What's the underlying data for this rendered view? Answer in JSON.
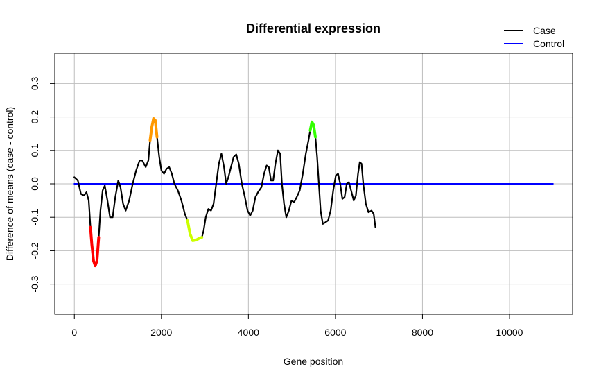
{
  "chart_data": {
    "type": "line",
    "title": "Differential expression",
    "xlabel": "Gene position",
    "ylabel": "Difference of means (case - control)",
    "xlim": [
      -450,
      11450
    ],
    "ylim": [
      -0.39,
      0.39
    ],
    "x_ticks": [
      0,
      2000,
      4000,
      6000,
      8000,
      10000
    ],
    "y_ticks": [
      -0.3,
      -0.2,
      -0.1,
      0.0,
      0.1,
      0.2,
      0.3
    ],
    "x_tick_labels": [
      "0",
      "2000",
      "4000",
      "6000",
      "8000",
      "10000"
    ],
    "y_tick_labels": [
      "-0.3",
      "-0.2",
      "-0.1",
      "0.0",
      "0.1",
      "0.2",
      "0.3"
    ],
    "grid": true,
    "legend_position": "top-right",
    "legend": [
      {
        "label": "Case",
        "color": "#000000"
      },
      {
        "label": "Control",
        "color": "#0000ff"
      }
    ],
    "colors": {
      "case": "#000000",
      "control": "#0000ff",
      "grid": "#bebebe"
    },
    "series": [
      {
        "name": "Case",
        "color": "#000000",
        "points": [
          [
            0,
            0.02
          ],
          [
            80,
            0.01
          ],
          [
            150,
            -0.03
          ],
          [
            220,
            -0.035
          ],
          [
            280,
            -0.025
          ],
          [
            330,
            -0.05
          ],
          [
            370,
            -0.13
          ],
          [
            400,
            -0.18
          ],
          [
            440,
            -0.23
          ],
          [
            480,
            -0.245
          ],
          [
            520,
            -0.23
          ],
          [
            560,
            -0.16
          ],
          [
            600,
            -0.08
          ],
          [
            650,
            -0.02
          ],
          [
            700,
            -0.005
          ],
          [
            760,
            -0.05
          ],
          [
            820,
            -0.1
          ],
          [
            880,
            -0.1
          ],
          [
            940,
            -0.04
          ],
          [
            1010,
            0.01
          ],
          [
            1060,
            -0.01
          ],
          [
            1120,
            -0.06
          ],
          [
            1180,
            -0.08
          ],
          [
            1260,
            -0.05
          ],
          [
            1340,
            0.0
          ],
          [
            1420,
            0.04
          ],
          [
            1500,
            0.07
          ],
          [
            1560,
            0.07
          ],
          [
            1640,
            0.05
          ],
          [
            1700,
            0.07
          ],
          [
            1740,
            0.13
          ],
          [
            1780,
            0.17
          ],
          [
            1820,
            0.195
          ],
          [
            1860,
            0.19
          ],
          [
            1900,
            0.14
          ],
          [
            1950,
            0.08
          ],
          [
            2000,
            0.04
          ],
          [
            2060,
            0.03
          ],
          [
            2120,
            0.045
          ],
          [
            2180,
            0.05
          ],
          [
            2240,
            0.03
          ],
          [
            2300,
            0.0
          ],
          [
            2380,
            -0.02
          ],
          [
            2460,
            -0.05
          ],
          [
            2540,
            -0.09
          ],
          [
            2600,
            -0.11
          ],
          [
            2660,
            -0.15
          ],
          [
            2720,
            -0.17
          ],
          [
            2800,
            -0.168
          ],
          [
            2880,
            -0.162
          ],
          [
            2930,
            -0.16
          ],
          [
            2970,
            -0.14
          ],
          [
            3020,
            -0.1
          ],
          [
            3080,
            -0.075
          ],
          [
            3140,
            -0.08
          ],
          [
            3200,
            -0.06
          ],
          [
            3260,
            0.0
          ],
          [
            3320,
            0.06
          ],
          [
            3380,
            0.09
          ],
          [
            3440,
            0.05
          ],
          [
            3490,
            0.0
          ],
          [
            3540,
            0.02
          ],
          [
            3600,
            0.05
          ],
          [
            3660,
            0.08
          ],
          [
            3720,
            0.088
          ],
          [
            3780,
            0.06
          ],
          [
            3850,
            0.0
          ],
          [
            3920,
            -0.04
          ],
          [
            3980,
            -0.08
          ],
          [
            4040,
            -0.095
          ],
          [
            4100,
            -0.08
          ],
          [
            4160,
            -0.04
          ],
          [
            4220,
            -0.025
          ],
          [
            4300,
            -0.01
          ],
          [
            4360,
            0.03
          ],
          [
            4420,
            0.055
          ],
          [
            4470,
            0.05
          ],
          [
            4520,
            0.01
          ],
          [
            4570,
            0.01
          ],
          [
            4620,
            0.06
          ],
          [
            4680,
            0.1
          ],
          [
            4730,
            0.09
          ],
          [
            4770,
            0.0
          ],
          [
            4820,
            -0.06
          ],
          [
            4870,
            -0.1
          ],
          [
            4930,
            -0.08
          ],
          [
            4990,
            -0.05
          ],
          [
            5050,
            -0.055
          ],
          [
            5110,
            -0.04
          ],
          [
            5180,
            -0.02
          ],
          [
            5250,
            0.03
          ],
          [
            5320,
            0.09
          ],
          [
            5380,
            0.13
          ],
          [
            5420,
            0.16
          ],
          [
            5460,
            0.185
          ],
          [
            5500,
            0.175
          ],
          [
            5540,
            0.14
          ],
          [
            5580,
            0.08
          ],
          [
            5620,
            0.0
          ],
          [
            5660,
            -0.08
          ],
          [
            5710,
            -0.12
          ],
          [
            5770,
            -0.115
          ],
          [
            5830,
            -0.11
          ],
          [
            5890,
            -0.08
          ],
          [
            5950,
            -0.02
          ],
          [
            6010,
            0.025
          ],
          [
            6060,
            0.03
          ],
          [
            6110,
            0.0
          ],
          [
            6160,
            -0.045
          ],
          [
            6210,
            -0.04
          ],
          [
            6260,
            0.0
          ],
          [
            6310,
            0.005
          ],
          [
            6360,
            -0.02
          ],
          [
            6420,
            -0.05
          ],
          [
            6470,
            -0.035
          ],
          [
            6520,
            0.03
          ],
          [
            6560,
            0.065
          ],
          [
            6600,
            0.06
          ],
          [
            6640,
            0.0
          ],
          [
            6700,
            -0.06
          ],
          [
            6760,
            -0.085
          ],
          [
            6830,
            -0.08
          ],
          [
            6880,
            -0.09
          ],
          [
            6920,
            -0.13
          ]
        ]
      },
      {
        "name": "Control",
        "color": "#0000ff",
        "points": [
          [
            0,
            0.0
          ],
          [
            11000,
            0.0
          ]
        ]
      }
    ],
    "highlights": [
      {
        "color": "#ff0000",
        "points": [
          [
            370,
            -0.13
          ],
          [
            400,
            -0.18
          ],
          [
            440,
            -0.23
          ],
          [
            480,
            -0.245
          ],
          [
            520,
            -0.23
          ],
          [
            560,
            -0.16
          ]
        ]
      },
      {
        "color": "#ff9900",
        "points": [
          [
            1740,
            0.13
          ],
          [
            1780,
            0.17
          ],
          [
            1820,
            0.195
          ],
          [
            1860,
            0.19
          ],
          [
            1900,
            0.14
          ]
        ]
      },
      {
        "color": "#ccff00",
        "points": [
          [
            2600,
            -0.11
          ],
          [
            2660,
            -0.15
          ],
          [
            2720,
            -0.17
          ],
          [
            2800,
            -0.168
          ],
          [
            2880,
            -0.162
          ],
          [
            2930,
            -0.16
          ]
        ]
      },
      {
        "color": "#33ff00",
        "points": [
          [
            5420,
            0.16
          ],
          [
            5460,
            0.185
          ],
          [
            5500,
            0.175
          ],
          [
            5540,
            0.14
          ]
        ]
      }
    ]
  }
}
